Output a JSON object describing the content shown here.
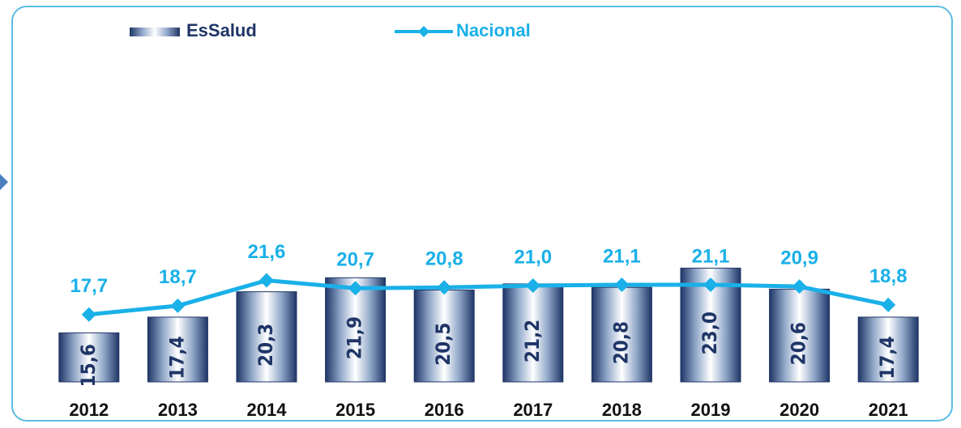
{
  "chart_data": {
    "type": "bar",
    "categories": [
      "2012",
      "2013",
      "2014",
      "2015",
      "2016",
      "2017",
      "2018",
      "2019",
      "2020",
      "2021"
    ],
    "series": [
      {
        "name": "EsSalud",
        "type": "bar",
        "color": "#1f3566",
        "values": [
          15.6,
          17.4,
          20.3,
          21.9,
          20.5,
          21.2,
          20.8,
          23.0,
          20.6,
          17.4
        ],
        "value_labels": [
          "15,6",
          "17,4",
          "20,3",
          "21,9",
          "20,5",
          "21,2",
          "20,8",
          "23,0",
          "20,6",
          "17,4"
        ]
      },
      {
        "name": "Nacional",
        "type": "line",
        "color": "#1ab0e8",
        "values": [
          17.7,
          18.7,
          21.6,
          20.7,
          20.8,
          21.0,
          21.1,
          21.1,
          20.9,
          18.8
        ],
        "value_labels": [
          "17,7",
          "18,7",
          "21,6",
          "20,7",
          "20,8",
          "21,0",
          "21,1",
          "21,1",
          "20,9",
          "18,8"
        ]
      }
    ],
    "ylim": [
      10,
      48
    ]
  }
}
